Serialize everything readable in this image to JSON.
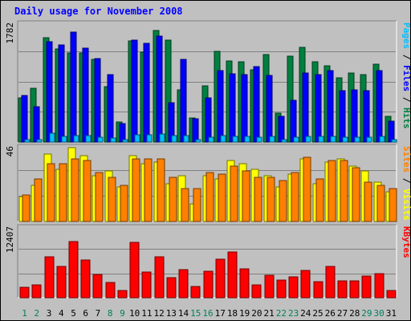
{
  "chart_data": [
    {
      "type": "bar",
      "title": "Daily usage for November 2008",
      "ymax_label": "1782",
      "right_label_parts": [
        {
          "text": "Pages",
          "color": "#00c0ff"
        },
        {
          "text": " / ",
          "color": "#000000"
        },
        {
          "text": "Files",
          "color": "#0000ff"
        },
        {
          "text": " / ",
          "color": "#000000"
        },
        {
          "text": "Hits",
          "color": "#008040"
        }
      ],
      "series": [
        {
          "name": "Hits",
          "color": "#008040",
          "values": [
            660,
            800,
            1560,
            1390,
            1330,
            1330,
            1230,
            830,
            300,
            1510,
            1340,
            1660,
            1520,
            780,
            360,
            840,
            1350,
            1210,
            1200,
            1080,
            1300,
            430,
            1280,
            1410,
            1190,
            1140,
            960,
            1030,
            1000,
            1160,
            380
          ]
        },
        {
          "name": "Files",
          "color": "#0000ff",
          "values": [
            690,
            530,
            1500,
            1450,
            1640,
            1400,
            1240,
            1000,
            270,
            1520,
            1470,
            1580,
            590,
            1230,
            350,
            660,
            1060,
            1020,
            1000,
            1130,
            990,
            380,
            620,
            1030,
            1000,
            1070,
            770,
            780,
            760,
            1070,
            310
          ]
        },
        {
          "name": "Pages",
          "color": "#00c0ff",
          "values": [
            35,
            35,
            130,
            80,
            100,
            90,
            70,
            60,
            30,
            110,
            105,
            120,
            95,
            90,
            40,
            70,
            100,
            80,
            80,
            75,
            85,
            40,
            70,
            85,
            80,
            80,
            70,
            70,
            70,
            80,
            40
          ]
        }
      ]
    },
    {
      "type": "bar",
      "ymax_label": "46",
      "right_label_parts": [
        {
          "text": "Sites",
          "color": "#ff8000"
        },
        {
          "text": " / ",
          "color": "#000000"
        },
        {
          "text": "Visits",
          "color": "#ffff00"
        }
      ],
      "series": [
        {
          "name": "Visits",
          "color": "#ffff00",
          "values": [
            15,
            22,
            41,
            32,
            45,
            40,
            28,
            31,
            21,
            40,
            35,
            36,
            23,
            28,
            11,
            28,
            26,
            37,
            35,
            32,
            28,
            21,
            29,
            38,
            23,
            36,
            38,
            34,
            31,
            24,
            18
          ]
        },
        {
          "name": "Sites",
          "color": "#ff8000",
          "values": [
            16,
            26,
            35,
            35,
            38,
            37,
            30,
            27,
            22,
            38,
            38,
            38,
            27,
            20,
            20,
            30,
            29,
            34,
            31,
            27,
            27,
            25,
            30,
            39,
            26,
            37,
            37,
            33,
            24,
            22,
            20
          ]
        }
      ]
    },
    {
      "type": "bar",
      "ymax_label": "12407",
      "right_label_parts": [
        {
          "text": "KBytes",
          "color": "#ff0000"
        }
      ],
      "series": [
        {
          "name": "KBytes",
          "color": "#ff0000",
          "values": [
            1770,
            2190,
            7170,
            5400,
            9690,
            6510,
            4020,
            2580,
            1250,
            9660,
            4440,
            7150,
            3520,
            4820,
            2000,
            4670,
            6730,
            7940,
            4980,
            2250,
            3970,
            3070,
            3630,
            4720,
            2830,
            5470,
            2970,
            2880,
            3720,
            4200,
            1310
          ]
        }
      ]
    }
  ],
  "x_axis": {
    "labels": [
      "1",
      "2",
      "3",
      "4",
      "5",
      "6",
      "7",
      "8",
      "9",
      "10",
      "11",
      "12",
      "13",
      "14",
      "15",
      "16",
      "17",
      "18",
      "19",
      "20",
      "21",
      "22",
      "23",
      "24",
      "25",
      "26",
      "27",
      "28",
      "29",
      "30",
      "31"
    ],
    "weekend_days": [
      "1",
      "2",
      "8",
      "9",
      "15",
      "16",
      "22",
      "23",
      "29",
      "30"
    ],
    "weekday_color": "#000000",
    "weekend_color": "#00805c"
  },
  "colors": {
    "background": "#c0c0c0",
    "plot_background": "#c0c0c0",
    "title": "#0000ff"
  }
}
